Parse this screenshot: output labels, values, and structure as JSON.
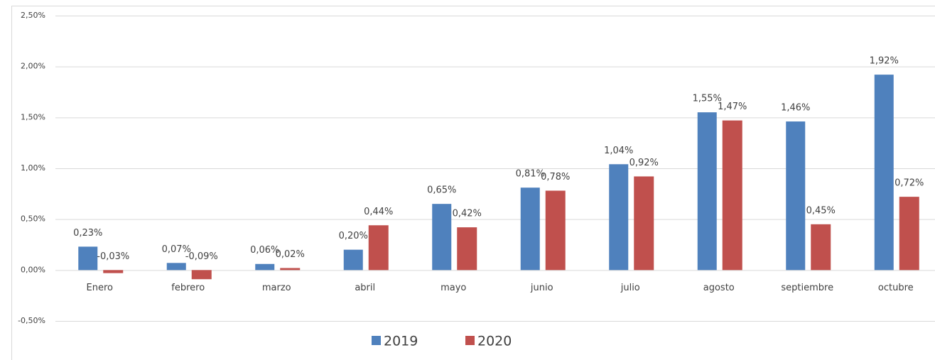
{
  "chart_data": {
    "type": "bar",
    "categories": [
      "Enero",
      "febrero",
      "marzo",
      "abril",
      "mayo",
      "junio",
      "julio",
      "agosto",
      "septiembre",
      "octubre"
    ],
    "series": [
      {
        "name": "2019",
        "color": "#4f81bd",
        "values": [
          0.23,
          0.07,
          0.06,
          0.2,
          0.65,
          0.81,
          1.04,
          1.55,
          1.46,
          1.92
        ],
        "value_labels": [
          "0,23%",
          "0,07%",
          "0,06%",
          "0,20%",
          "0,65%",
          "0,81%",
          "1,04%",
          "1,55%",
          "1,46%",
          "1,92%"
        ]
      },
      {
        "name": "2020",
        "color": "#c0504d",
        "values": [
          -0.03,
          -0.09,
          0.02,
          0.44,
          0.42,
          0.78,
          0.92,
          1.47,
          0.45,
          0.72
        ],
        "value_labels": [
          "-0,03%",
          "-0,09%",
          "0,02%",
          "0,44%",
          "0,42%",
          "0,78%",
          "0,92%",
          "1,47%",
          "0,45%",
          "0,72%"
        ]
      }
    ],
    "ylim": [
      -0.5,
      2.5
    ],
    "yticks": [
      {
        "value": -0.5,
        "label": "-0,50%"
      },
      {
        "value": 0,
        "label": "0,00%"
      },
      {
        "value": 0.5,
        "label": "0,50%"
      },
      {
        "value": 1,
        "label": "1,00%"
      },
      {
        "value": 1.5,
        "label": "1,50%"
      },
      {
        "value": 2,
        "label": "2,00%"
      },
      {
        "value": 2.5,
        "label": "2,50%"
      }
    ],
    "grid": true,
    "legend": "bottom"
  }
}
